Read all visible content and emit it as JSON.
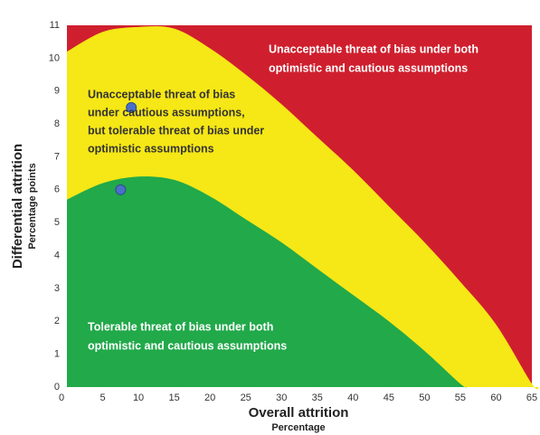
{
  "chart_data": {
    "type": "area",
    "x_label": "Overall attrition",
    "x_sublabel": "Percentage",
    "y_label": "Differential attrition",
    "y_sublabel": "Percentage points",
    "background_color": "#cf1f2e",
    "x": [
      0,
      5,
      10,
      15,
      20,
      25,
      30,
      35,
      40,
      45,
      50,
      55,
      60,
      65
    ],
    "series": [
      {
        "color": "#f6e716",
        "values": [
          10.2,
          10.8,
          10.95,
          10.9,
          10.3,
          9.5,
          8.6,
          7.6,
          6.6,
          5.5,
          4.4,
          3.2,
          1.9,
          0.1
        ]
      },
      {
        "color": "#21a94a",
        "values": [
          5.7,
          6.2,
          6.4,
          6.3,
          5.8,
          5.1,
          4.4,
          3.6,
          2.8,
          2.0,
          1.1,
          0.1,
          null,
          null
        ]
      }
    ],
    "points": {
      "color": "#4a6fc8",
      "x": [
        9,
        7.5
      ],
      "values": [
        8.5,
        6
      ]
    },
    "annotations": [
      {
        "lines": [
          "Unacceptable threat of bias under both",
          "optimistic and cautious assumptions"
        ]
      },
      {
        "lines": [
          "Unacceptable threat of bias",
          "under cautious assumptions,",
          "but tolerable threat of bias under",
          "optimistic assumptions"
        ]
      },
      {
        "lines": [
          "Tolerable threat of bias under both",
          "optimistic and cautious assumptions"
        ]
      }
    ],
    "xlim": [
      0,
      65
    ],
    "xticks": [
      0,
      5,
      10,
      15,
      20,
      25,
      30,
      35,
      40,
      45,
      50,
      55,
      60,
      65
    ],
    "ylim": [
      0,
      11
    ],
    "yticks": [
      0,
      1,
      2,
      3,
      4,
      5,
      6,
      7,
      8,
      9,
      10,
      11
    ]
  }
}
